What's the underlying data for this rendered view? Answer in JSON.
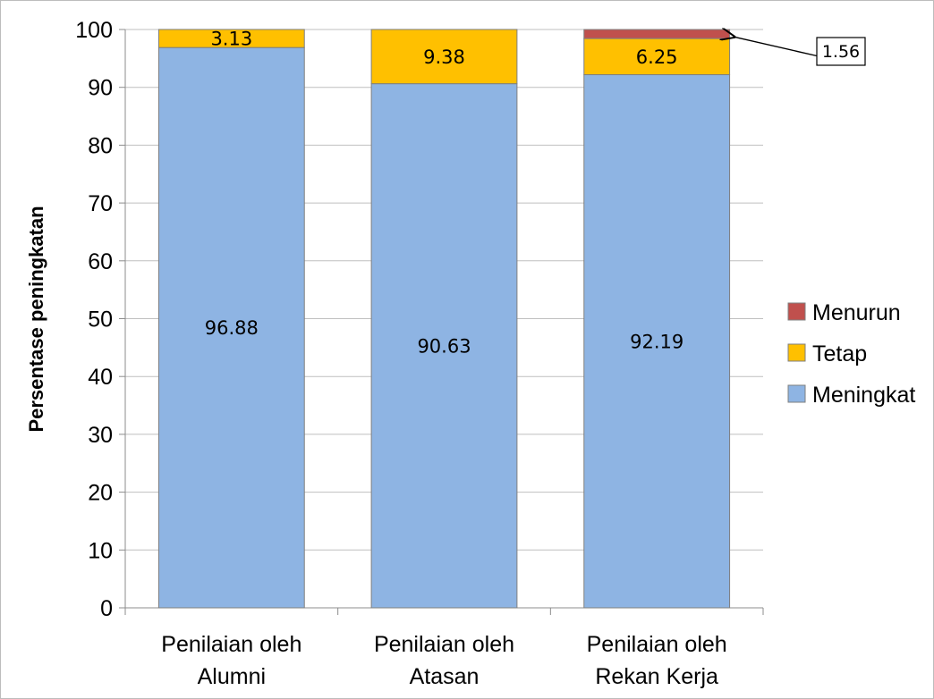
{
  "chart_data": {
    "type": "bar",
    "stacked": true,
    "title": "",
    "xlabel": "",
    "ylabel": "Persentase peningkatan",
    "ylim": [
      0,
      100
    ],
    "yticks": [
      0,
      10,
      20,
      30,
      40,
      50,
      60,
      70,
      80,
      90,
      100
    ],
    "grid": true,
    "legend_position": "right",
    "categories": [
      [
        "Penilaian oleh",
        "Alumni"
      ],
      [
        "Penilaian oleh",
        "Atasan"
      ],
      [
        "Penilaian oleh",
        "Rekan Kerja"
      ]
    ],
    "series": [
      {
        "name": "Meningkat",
        "color": "#8EB4E3",
        "values": [
          96.88,
          90.63,
          92.19
        ],
        "labels": [
          "96.88",
          "90.63",
          "92.19"
        ]
      },
      {
        "name": "Tetap",
        "color": "#FFC000",
        "values": [
          3.13,
          9.38,
          6.25
        ],
        "labels": [
          "3.13",
          "9.38",
          "6.25"
        ]
      },
      {
        "name": "Menurun",
        "color": "#C0504D",
        "values": [
          0,
          0,
          1.56
        ],
        "labels": [
          "",
          "",
          ""
        ]
      }
    ],
    "legend_order": [
      "Menurun",
      "Tetap",
      "Meningkat"
    ],
    "callout": {
      "text": "1.56",
      "category_index": 2,
      "series": "Menurun"
    }
  }
}
